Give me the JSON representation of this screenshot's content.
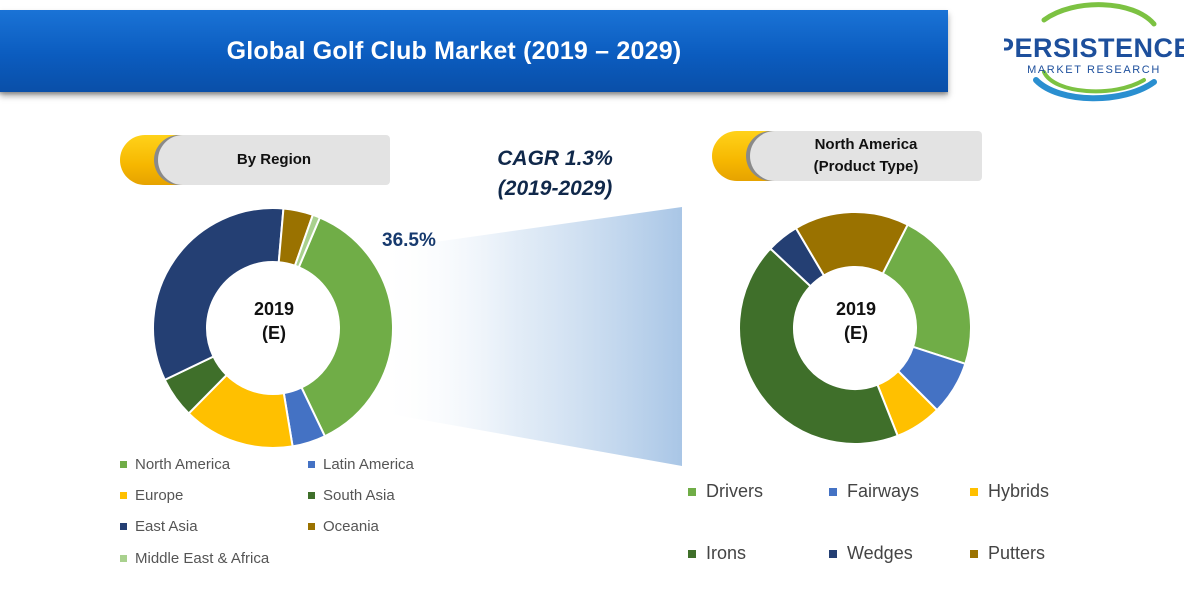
{
  "header": {
    "title": "Global Golf Club Market (2019 – 2029)"
  },
  "logo": {
    "line1": "PERSISTENCE",
    "line2": "MARKET RESEARCH"
  },
  "region_label": "By Region",
  "product_label": {
    "line1": "North America",
    "line2": "(Product Type)"
  },
  "cagr": {
    "line1": "CAGR 1.3%",
    "line2": "(2019-2029)"
  },
  "colors": {
    "banner_blue": "#0b5cbf",
    "accent_gold": "#f6b700"
  },
  "chart_data": [
    {
      "type": "pie",
      "donut": true,
      "title": "By Region",
      "center_label": {
        "line1": "2019",
        "line2": "(E)"
      },
      "highlight_label": "36.5%",
      "series": [
        {
          "name": "North America",
          "value": 36.5,
          "color": "#70ad47"
        },
        {
          "name": "Latin America",
          "value": 4.5,
          "color": "#4472c4"
        },
        {
          "name": "Europe",
          "value": 15.0,
          "color": "#ffc000"
        },
        {
          "name": "South Asia",
          "value": 5.5,
          "color": "#3f6f2a"
        },
        {
          "name": "East Asia",
          "value": 33.5,
          "color": "#243f73"
        },
        {
          "name": "Oceania",
          "value": 4.0,
          "color": "#9a7200"
        },
        {
          "name": "Middle East & Africa",
          "value": 1.0,
          "color": "#a9d18e"
        }
      ],
      "legend_order": [
        "North America",
        "Latin America",
        "Europe",
        "South Asia",
        "East Asia",
        "Oceania",
        "Middle East & Africa"
      ]
    },
    {
      "type": "pie",
      "donut": true,
      "title": "North America (Product Type)",
      "center_label": {
        "line1": "2019",
        "line2": "(E)"
      },
      "series": [
        {
          "name": "Drivers",
          "value": 22.5,
          "color": "#70ad47"
        },
        {
          "name": "Fairways",
          "value": 7.5,
          "color": "#4472c4"
        },
        {
          "name": "Hybrids",
          "value": 6.5,
          "color": "#ffc000"
        },
        {
          "name": "Irons",
          "value": 43.0,
          "color": "#3f6f2a"
        },
        {
          "name": "Wedges",
          "value": 4.5,
          "color": "#243f73"
        },
        {
          "name": "Putters",
          "value": 16.0,
          "color": "#9a7200"
        }
      ],
      "legend_order": [
        "Drivers",
        "Fairways",
        "Hybrids",
        "Irons",
        "Wedges",
        "Putters"
      ]
    }
  ]
}
